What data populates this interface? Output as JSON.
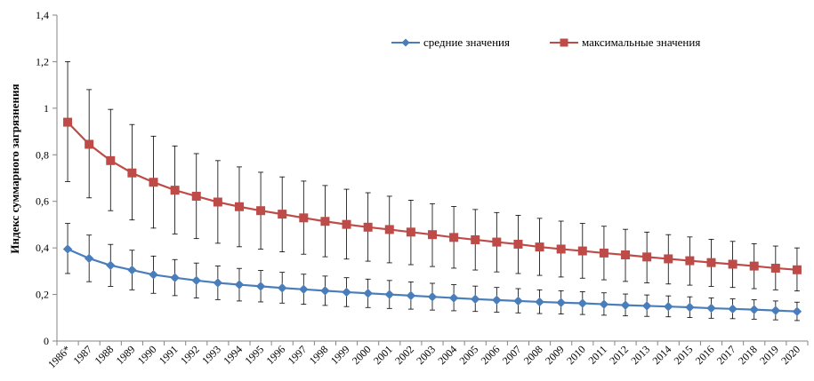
{
  "chart_data": {
    "type": "line",
    "ylabel": "Индекс суммарного загрязнения",
    "xlabel": "",
    "ylim": [
      0,
      1.4
    ],
    "yticks": [
      0,
      0.2,
      0.4,
      0.6,
      0.8,
      1,
      1.2,
      1.4
    ],
    "ytick_labels": [
      "0",
      "0,2",
      "0,4",
      "0,6",
      "0,8",
      "1",
      "1,2",
      "1,4"
    ],
    "grid": false,
    "legend_position": "top-right",
    "categories": [
      "1986*",
      "1987",
      "1988",
      "1989",
      "1990",
      "1991",
      "1992",
      "1993",
      "1994",
      "1995",
      "1996",
      "1997",
      "1998",
      "1999",
      "2000",
      "2001",
      "2002",
      "2003",
      "2004",
      "2005",
      "2006",
      "2007",
      "2008",
      "2009",
      "2010",
      "2011",
      "2012",
      "2013",
      "2014",
      "2015",
      "2016",
      "2017",
      "2018",
      "2019",
      "2020"
    ],
    "series": [
      {
        "name": "средние значения",
        "color": "#4A7EBB",
        "marker": "diamond",
        "values": [
          0.395,
          0.355,
          0.325,
          0.305,
          0.285,
          0.272,
          0.26,
          0.25,
          0.242,
          0.235,
          0.228,
          0.222,
          0.216,
          0.21,
          0.205,
          0.2,
          0.195,
          0.19,
          0.185,
          0.18,
          0.176,
          0.172,
          0.168,
          0.165,
          0.162,
          0.158,
          0.154,
          0.151,
          0.148,
          0.145,
          0.141,
          0.138,
          0.135,
          0.131,
          0.127
        ],
        "error_low": [
          0.29,
          0.255,
          0.235,
          0.22,
          0.205,
          0.195,
          0.185,
          0.178,
          0.172,
          0.168,
          0.163,
          0.158,
          0.153,
          0.148,
          0.144,
          0.14,
          0.137,
          0.133,
          0.13,
          0.127,
          0.124,
          0.121,
          0.118,
          0.116,
          0.114,
          0.111,
          0.108,
          0.106,
          0.104,
          0.101,
          0.098,
          0.096,
          0.094,
          0.091,
          0.088
        ],
        "error_high": [
          0.505,
          0.455,
          0.415,
          0.39,
          0.365,
          0.35,
          0.335,
          0.322,
          0.312,
          0.303,
          0.295,
          0.287,
          0.279,
          0.272,
          0.266,
          0.26,
          0.254,
          0.248,
          0.242,
          0.236,
          0.23,
          0.225,
          0.22,
          0.216,
          0.212,
          0.207,
          0.202,
          0.198,
          0.194,
          0.19,
          0.185,
          0.181,
          0.177,
          0.172,
          0.167
        ]
      },
      {
        "name": "максимальные значения",
        "color": "#BE4B48",
        "marker": "square",
        "values": [
          0.94,
          0.845,
          0.775,
          0.722,
          0.682,
          0.648,
          0.622,
          0.597,
          0.577,
          0.56,
          0.545,
          0.529,
          0.514,
          0.501,
          0.489,
          0.479,
          0.468,
          0.457,
          0.445,
          0.435,
          0.425,
          0.416,
          0.404,
          0.395,
          0.387,
          0.378,
          0.37,
          0.361,
          0.353,
          0.345,
          0.337,
          0.33,
          0.322,
          0.313,
          0.306
        ],
        "error_low": [
          0.685,
          0.615,
          0.56,
          0.52,
          0.485,
          0.46,
          0.44,
          0.42,
          0.405,
          0.395,
          0.383,
          0.373,
          0.362,
          0.352,
          0.343,
          0.336,
          0.328,
          0.32,
          0.313,
          0.305,
          0.297,
          0.29,
          0.282,
          0.275,
          0.27,
          0.263,
          0.256,
          0.25,
          0.245,
          0.24,
          0.235,
          0.23,
          0.225,
          0.22,
          0.215
        ],
        "error_high": [
          1.2,
          1.08,
          0.995,
          0.93,
          0.88,
          0.838,
          0.805,
          0.775,
          0.748,
          0.725,
          0.705,
          0.687,
          0.668,
          0.652,
          0.637,
          0.622,
          0.605,
          0.59,
          0.578,
          0.565,
          0.552,
          0.54,
          0.527,
          0.515,
          0.505,
          0.493,
          0.48,
          0.468,
          0.457,
          0.447,
          0.437,
          0.428,
          0.418,
          0.408,
          0.4
        ]
      }
    ]
  }
}
